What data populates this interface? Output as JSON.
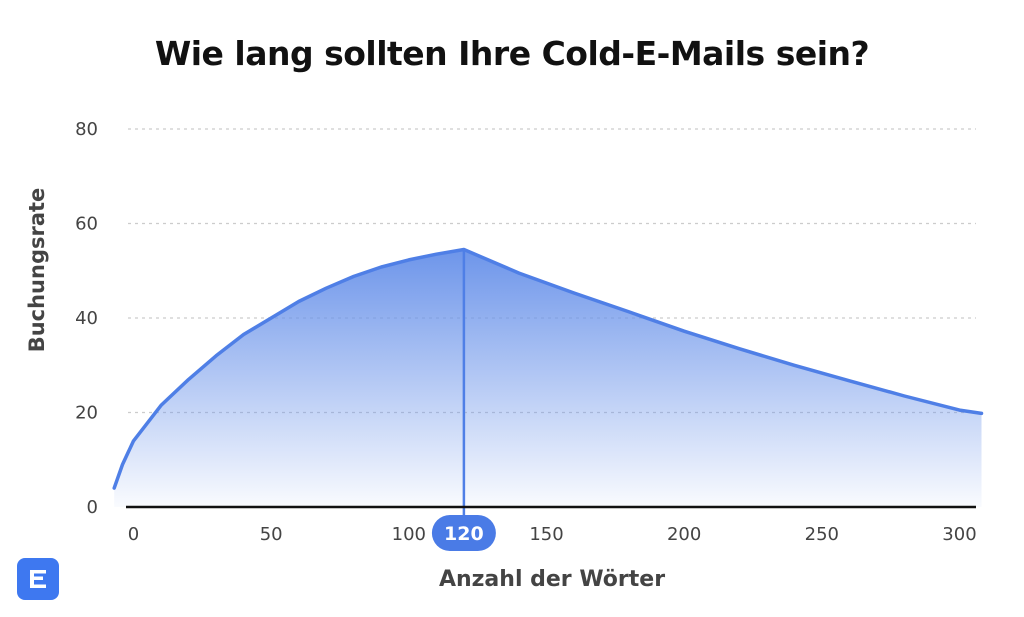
{
  "chart_data": {
    "type": "area",
    "title": "Wie lang sollten Ihre Cold-E-Mails sein?",
    "xlabel": "Anzahl der Wörter",
    "ylabel": "Buchungsrate",
    "xlim": [
      -2,
      306
    ],
    "ylim": [
      0,
      80
    ],
    "x_ticks": [
      0,
      50,
      100,
      150,
      200,
      250,
      300
    ],
    "y_ticks": [
      0,
      20,
      40,
      60,
      80
    ],
    "highlight": {
      "x": 120,
      "label": "120"
    },
    "grid": true,
    "legend": "none",
    "series": [
      {
        "x": [
          -7,
          -4,
          0,
          10,
          20,
          30,
          40,
          50,
          60,
          70,
          80,
          90,
          100,
          110,
          120,
          140,
          160,
          180,
          200,
          220,
          240,
          260,
          280,
          300,
          308
        ],
        "values": [
          4,
          9,
          14,
          21.5,
          27,
          32,
          36.5,
          40,
          43.5,
          46.3,
          48.8,
          50.8,
          52.3,
          53.5,
          54.5,
          49.5,
          45.3,
          41.3,
          37.2,
          33.5,
          30,
          26.7,
          23.5,
          20.5,
          19.8
        ]
      }
    ]
  },
  "colors": {
    "line": "#4f7fe6",
    "fill_top": "#6d95ea",
    "highlight_badge": "#4a7be6",
    "grid": "#cccccc",
    "axis": "#111111",
    "logo_bg": "#3e78f0"
  },
  "logo": {
    "icon": "lemlist-logo-icon"
  }
}
